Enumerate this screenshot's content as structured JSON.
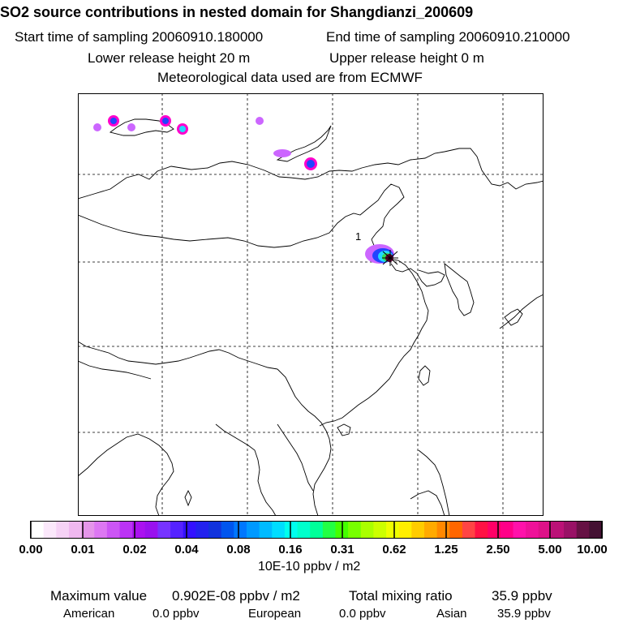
{
  "header": {
    "title": "SO2 source contributions in nested domain for Shangdianzi_200609",
    "start_time": "Start time of sampling 20060910.180000",
    "end_time": "End time of sampling 20060910.210000",
    "lower_height": "Lower release height   20 m",
    "upper_height": "Upper release height    0 m",
    "met_data": "Meteorological data used are from ECMWF"
  },
  "map": {
    "station_label": "1",
    "plume_colors": {
      "outer": "#cc66ff",
      "mid_high": "#ff00cc",
      "blue": "#2244ff",
      "cyan": "#22d8ff",
      "green": "#33dd55",
      "core": "#660033"
    }
  },
  "legend": {
    "colors": [
      "#ffffff",
      "#fbe8fb",
      "#f6d2f6",
      "#f0b8f0",
      "#e595ea",
      "#dd77f3",
      "#cc55f5",
      "#bb33f5",
      "#aa11f0",
      "#9911ee",
      "#7733ff",
      "#5522ff",
      "#3311ff",
      "#2222ee",
      "#1133dd",
      "#0055ee",
      "#0077ff",
      "#0099ff",
      "#00bbff",
      "#00ddff",
      "#00ffee",
      "#00ffcc",
      "#00ff99",
      "#22ff44",
      "#44ff00",
      "#77ff00",
      "#aaff00",
      "#ccff00",
      "#eeff00",
      "#ffee00",
      "#ffcc00",
      "#ffaa00",
      "#ff8800",
      "#ff6600",
      "#ff4444",
      "#ff1144",
      "#ff0066",
      "#ff0088",
      "#ff11aa",
      "#ee1199",
      "#dd1188",
      "#bb1177",
      "#991166",
      "#661144",
      "#441133"
    ],
    "ticks": [
      "0.00",
      "0.01",
      "0.02",
      "0.04",
      "0.08",
      "0.16",
      "0.31",
      "0.62",
      "1.25",
      "2.50",
      "5.00",
      "10.00"
    ],
    "units": "10E-10 ppbv / m2"
  },
  "footer": {
    "max_label": "Maximum value",
    "max_value": "0.902E-08 ppbv / m2",
    "total_label": "Total mixing ratio",
    "total_value": "35.9 ppbv",
    "regions": [
      {
        "name": "American",
        "value": "0.0 ppbv"
      },
      {
        "name": "European",
        "value": "0.0 ppbv"
      },
      {
        "name": "Asian",
        "value": "35.9 ppbv"
      }
    ]
  }
}
